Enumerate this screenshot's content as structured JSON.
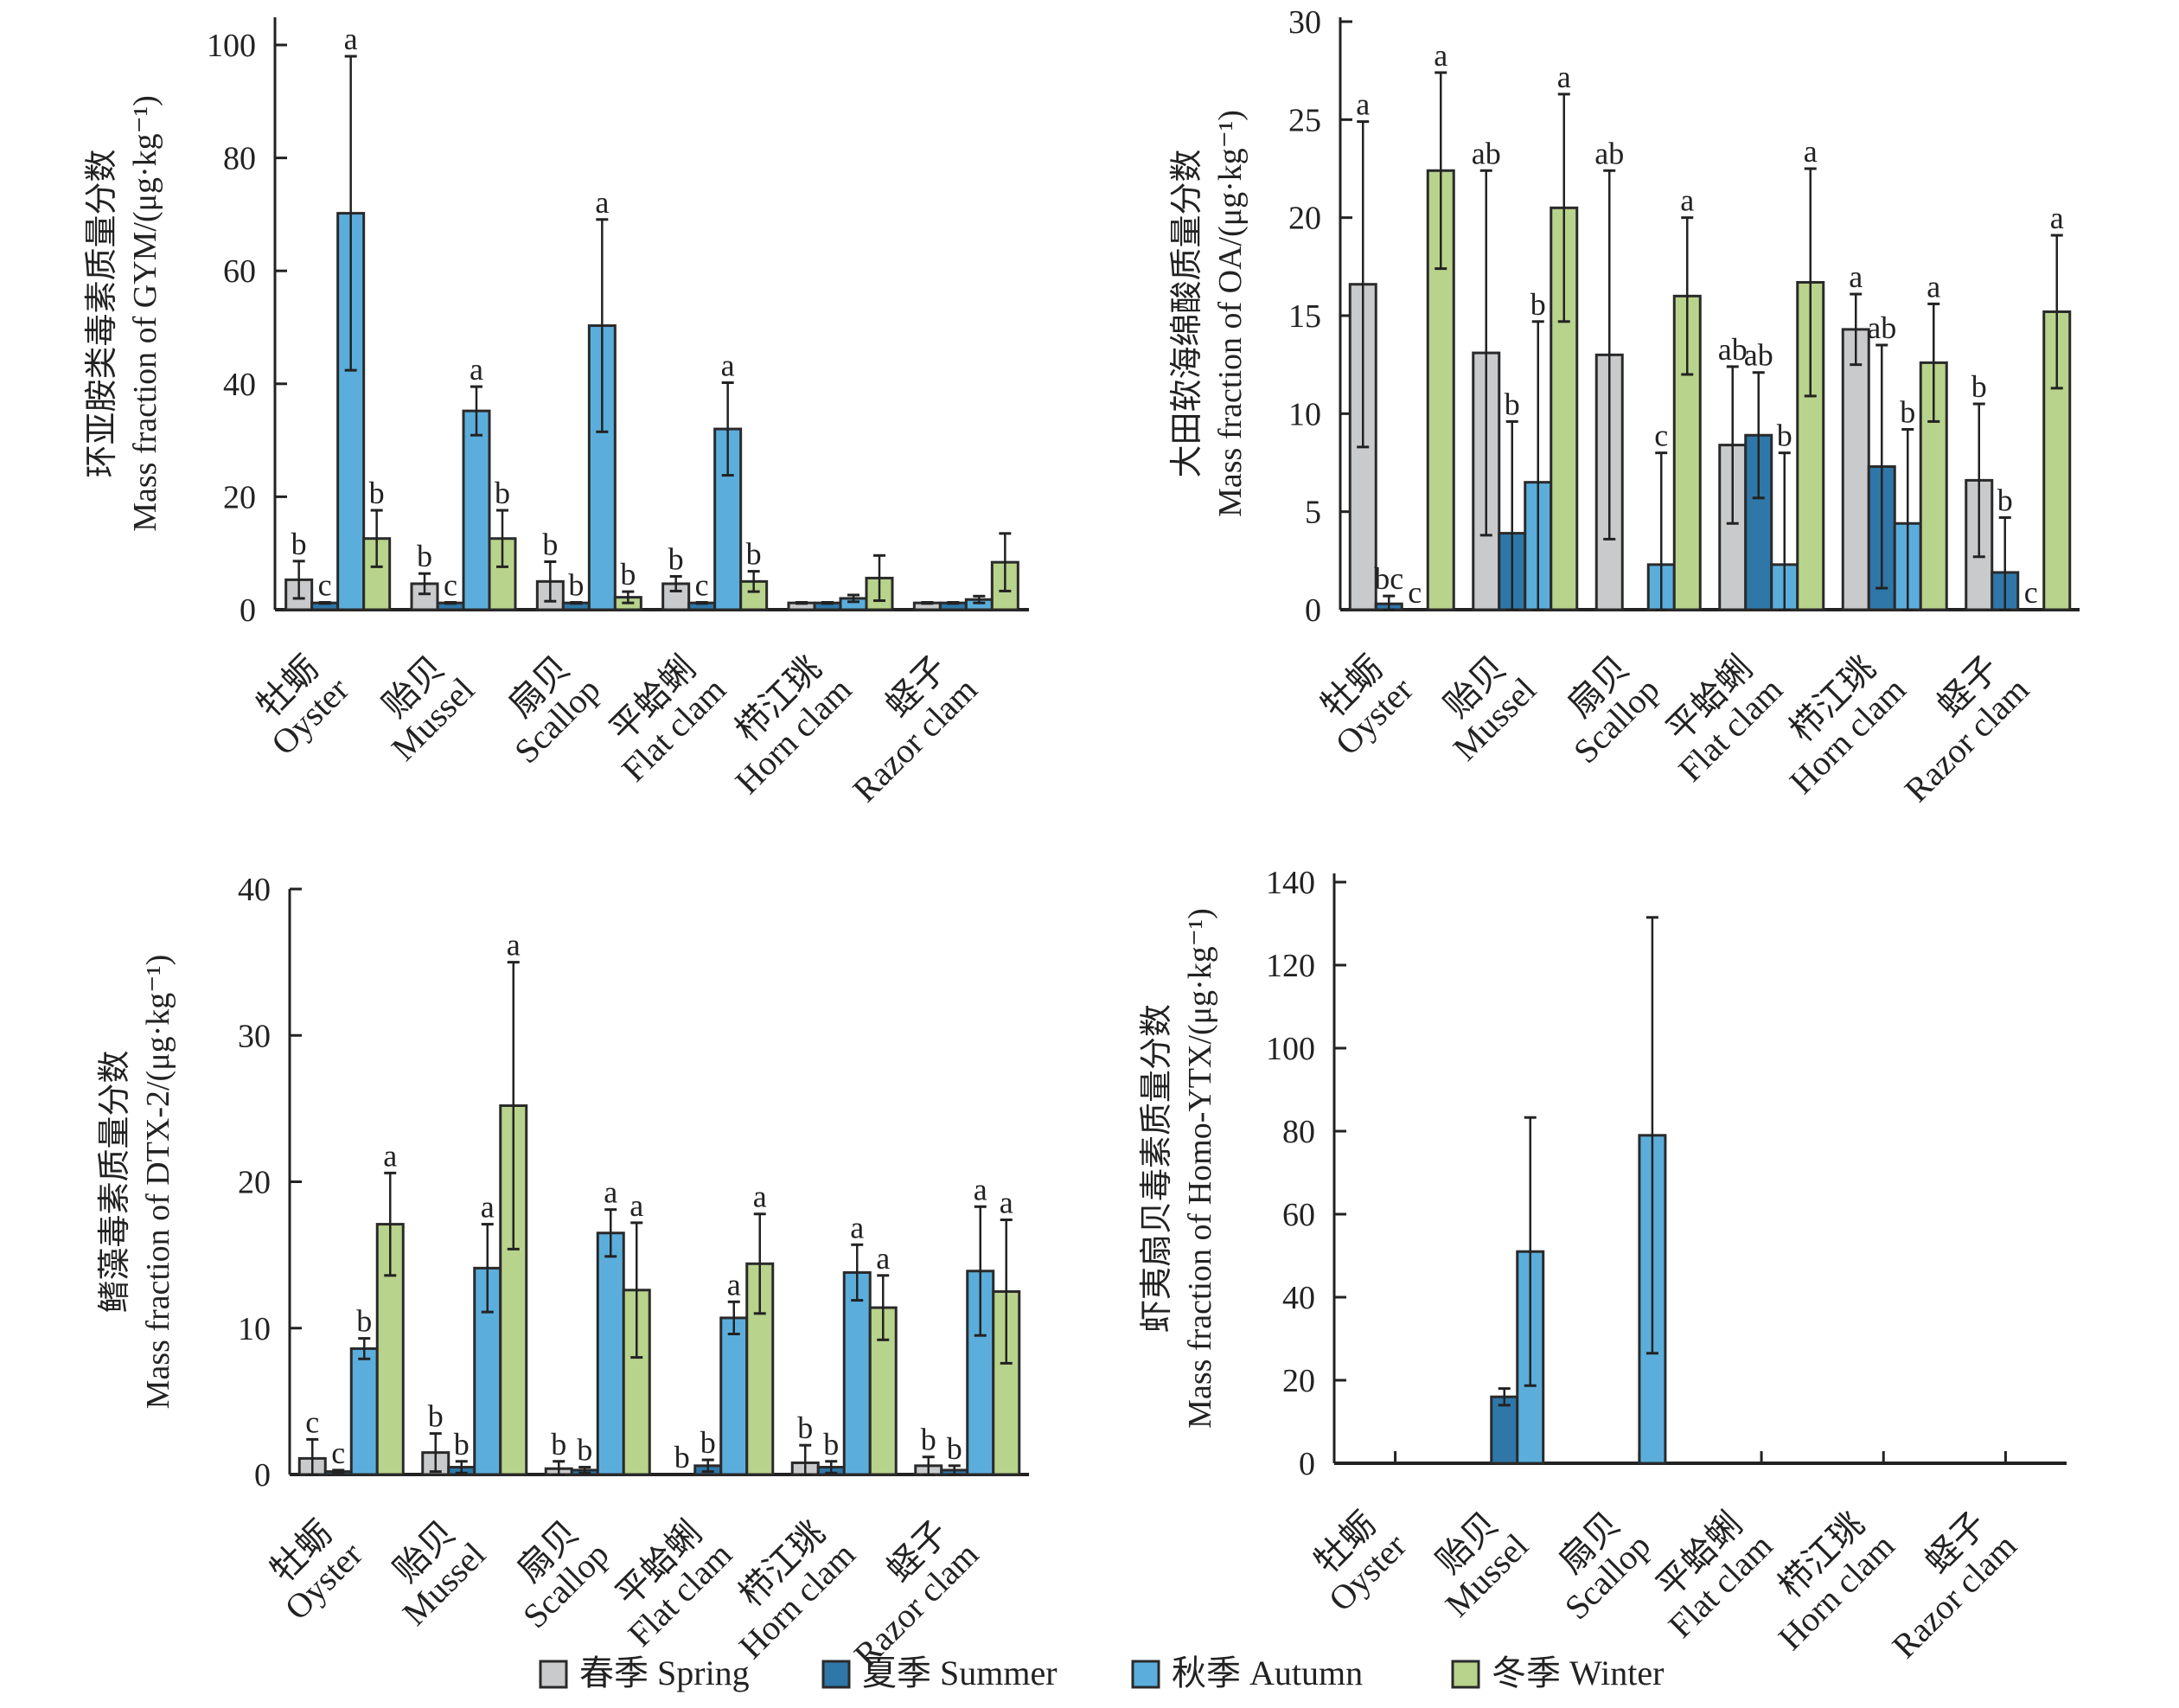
{
  "legend": [
    {
      "label": "春季 Spring",
      "color": "#c9cacc"
    },
    {
      "label": "夏季 Summer",
      "color": "#2e77a8"
    },
    {
      "label": "秋季 Autumn",
      "color": "#5baedc"
    },
    {
      "label": "冬季 Winter",
      "color": "#b8d38b"
    }
  ],
  "chart_data": [
    {
      "type": "bar",
      "title": "",
      "ylabel_cn": "环亚胺类毒素质量分数",
      "ylabel": "Mass fraction of GYM/(μg·kg⁻¹)",
      "xlabel": "",
      "ylim": [
        0,
        110
      ],
      "yticks": [
        0,
        20,
        40,
        60,
        80,
        100
      ],
      "categories": [
        {
          "cn": "牡蛎",
          "en": "Oyster"
        },
        {
          "cn": "贻贝",
          "en": "Mussel"
        },
        {
          "cn": "扇贝",
          "en": "Scallop"
        },
        {
          "cn": "平蛤蜊",
          "en": "Flat clam"
        },
        {
          "cn": "栉江珧",
          "en": "Horn clam"
        },
        {
          "cn": "蛏子",
          "en": "Razor clam"
        }
      ],
      "series": [
        {
          "name": "春季 Spring",
          "values": [
            5.3,
            4.6,
            5.0,
            4.6,
            1.2,
            1.2
          ],
          "errors": [
            3.3,
            1.8,
            3.5,
            1.3,
            0.1,
            0.1
          ],
          "sig": [
            "b",
            "b",
            "b",
            "b",
            "",
            ""
          ]
        },
        {
          "name": "夏季 Summer",
          "values": [
            1.2,
            1.2,
            1.2,
            1.2,
            1.2,
            1.2
          ],
          "errors": [
            0.1,
            0.1,
            0.1,
            0.1,
            0.1,
            0.1
          ],
          "sig": [
            "c",
            "c",
            "b",
            "c",
            "",
            ""
          ]
        },
        {
          "name": "秋季 Autumn",
          "values": [
            70.2,
            35.2,
            50.3,
            32.0,
            2.0,
            1.8
          ],
          "errors": [
            27.8,
            4.3,
            18.8,
            8.2,
            0.6,
            0.6
          ],
          "sig": [
            "a",
            "a",
            "a",
            "a",
            "",
            ""
          ]
        },
        {
          "name": "冬季 Winter",
          "values": [
            12.6,
            12.6,
            2.2,
            5.0,
            5.6,
            8.4
          ],
          "errors": [
            5.0,
            5.0,
            1.0,
            1.8,
            4.0,
            5.1
          ],
          "sig": [
            "b",
            "b",
            "b",
            "b",
            "",
            ""
          ]
        }
      ]
    },
    {
      "type": "bar",
      "title": "",
      "ylabel_cn": "大田软海绵酸质量分数",
      "ylabel": "Mass fraction of OA/(μg·kg⁻¹)",
      "xlabel": "",
      "ylim": [
        0,
        30
      ],
      "yticks": [
        0,
        5,
        10,
        15,
        20,
        25,
        30
      ],
      "categories": [
        {
          "cn": "牡蛎",
          "en": "Oyster"
        },
        {
          "cn": "贻贝",
          "en": "Mussel"
        },
        {
          "cn": "扇贝",
          "en": "Scallop"
        },
        {
          "cn": "平蛤蜊",
          "en": "Flat clam"
        },
        {
          "cn": "栉江珧",
          "en": "Horn clam"
        },
        {
          "cn": "蛏子",
          "en": "Razor clam"
        }
      ],
      "series": [
        {
          "name": "春季 Spring",
          "values": [
            16.6,
            13.1,
            13.0,
            8.4,
            14.3,
            6.6
          ],
          "errors": [
            8.3,
            9.3,
            9.4,
            4.0,
            1.8,
            3.9
          ],
          "sig": [
            "a",
            "ab",
            "ab",
            "ab",
            "a",
            "b"
          ]
        },
        {
          "name": "夏季 Summer",
          "values": [
            0.3,
            3.9,
            0.0,
            8.9,
            7.3,
            1.9
          ],
          "errors": [
            0.4,
            5.7,
            0.0,
            3.2,
            6.2,
            2.8
          ],
          "sig": [
            "bc",
            "b",
            "",
            "ab",
            "ab",
            "b"
          ]
        },
        {
          "name": "秋季 Autumn",
          "values": [
            0.0,
            6.5,
            2.3,
            2.3,
            4.4,
            0.0
          ],
          "errors": [
            0.0,
            8.2,
            5.7,
            5.7,
            4.8,
            0.0
          ],
          "sig": [
            "c",
            "b",
            "c",
            "b",
            "b",
            "c"
          ]
        },
        {
          "name": "冬季 Winter",
          "values": [
            22.4,
            20.5,
            16.0,
            16.7,
            12.6,
            15.2
          ],
          "errors": [
            5.0,
            5.8,
            4.0,
            5.8,
            3.0,
            3.9
          ],
          "sig": [
            "a",
            "a",
            "a",
            "a",
            "a",
            "a"
          ]
        }
      ]
    },
    {
      "type": "bar",
      "title": "",
      "ylabel_cn": "鳍藻毒素质量分数",
      "ylabel": "Mass fraction of DTX-2/(μg·kg⁻¹)",
      "xlabel": "",
      "ylim": [
        0,
        40
      ],
      "yticks": [
        0,
        10,
        20,
        30,
        40
      ],
      "categories": [
        {
          "cn": "牡蛎",
          "en": "Oyster"
        },
        {
          "cn": "贻贝",
          "en": "Mussel"
        },
        {
          "cn": "扇贝",
          "en": "Scallop"
        },
        {
          "cn": "平蛤蜊",
          "en": "Flat clam"
        },
        {
          "cn": "栉江珧",
          "en": "Horn clam"
        },
        {
          "cn": "蛏子",
          "en": "Razor clam"
        }
      ],
      "series": [
        {
          "name": "春季 Spring",
          "values": [
            1.1,
            1.5,
            0.4,
            0.0,
            0.8,
            0.6
          ],
          "errors": [
            1.3,
            1.3,
            0.5,
            0.0,
            1.2,
            0.6
          ],
          "sig": [
            "c",
            "b",
            "b",
            "b",
            "b",
            "b"
          ]
        },
        {
          "name": "夏季 Summer",
          "values": [
            0.2,
            0.5,
            0.3,
            0.6,
            0.5,
            0.3
          ],
          "errors": [
            0.1,
            0.4,
            0.2,
            0.4,
            0.4,
            0.3
          ],
          "sig": [
            "c",
            "b",
            "b",
            "b",
            "b",
            "b"
          ]
        },
        {
          "name": "秋季 Autumn",
          "values": [
            8.6,
            14.1,
            16.5,
            10.7,
            13.8,
            13.9
          ],
          "errors": [
            0.7,
            3.0,
            1.6,
            1.1,
            1.9,
            4.4
          ],
          "sig": [
            "b",
            "a",
            "a",
            "a",
            "a",
            "a"
          ]
        },
        {
          "name": "冬季 Winter",
          "values": [
            17.1,
            25.2,
            12.6,
            14.4,
            11.4,
            12.5
          ],
          "errors": [
            3.5,
            9.8,
            4.6,
            3.4,
            2.2,
            4.9
          ],
          "sig": [
            "a",
            "a",
            "a",
            "a",
            "a",
            "a"
          ]
        }
      ]
    },
    {
      "type": "bar",
      "title": "",
      "ylabel_cn": "虾夷扇贝毒素质量分数",
      "ylabel": "Mass fraction of Homo-YTX/(μg·kg⁻¹)",
      "xlabel": "",
      "ylim": [
        0,
        140
      ],
      "yticks": [
        0,
        20,
        40,
        60,
        80,
        100,
        120,
        140
      ],
      "categories": [
        {
          "cn": "牡蛎",
          "en": "Oyster"
        },
        {
          "cn": "贻贝",
          "en": "Mussel"
        },
        {
          "cn": "扇贝",
          "en": "Scallop"
        },
        {
          "cn": "平蛤蜊",
          "en": "Flat clam"
        },
        {
          "cn": "栉江珧",
          "en": "Horn clam"
        },
        {
          "cn": "蛏子",
          "en": "Razor clam"
        }
      ],
      "series": [
        {
          "name": "春季 Spring",
          "values": [
            0,
            0,
            0,
            0,
            0,
            0
          ],
          "errors": [
            0,
            0,
            0,
            0,
            0,
            0
          ],
          "sig": [
            "",
            "",
            "",
            "",
            "",
            ""
          ]
        },
        {
          "name": "夏季 Summer",
          "values": [
            0,
            16.0,
            0,
            0,
            0,
            0
          ],
          "errors": [
            0,
            2.0,
            0,
            0,
            0,
            0
          ],
          "sig": [
            "",
            "",
            "",
            "",
            "",
            ""
          ]
        },
        {
          "name": "秋季 Autumn",
          "values": [
            0,
            51.0,
            79.0,
            0,
            0,
            0
          ],
          "errors": [
            0,
            32.3,
            52.5,
            0,
            0,
            0
          ],
          "sig": [
            "",
            "",
            "",
            "",
            "",
            ""
          ]
        },
        {
          "name": "冬季 Winter",
          "values": [
            0,
            0,
            0,
            0,
            0,
            0
          ],
          "errors": [
            0,
            0,
            0,
            0,
            0,
            0
          ],
          "sig": [
            "",
            "",
            "",
            "",
            "",
            ""
          ]
        }
      ]
    }
  ]
}
